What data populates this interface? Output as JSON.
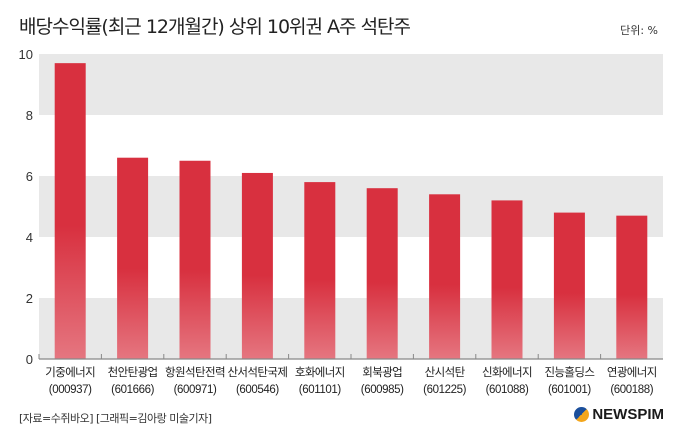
{
  "chart_data": {
    "type": "bar",
    "title": "배당수익률(최근 12개월간) 상위 10위권 A주 석탄주",
    "unit": "단위: %",
    "categories": [
      {
        "name": "기중에너지",
        "code": "(000937)"
      },
      {
        "name": "천안탄광업",
        "code": "(601666)"
      },
      {
        "name": "항원석탄전력",
        "code": "(600971)"
      },
      {
        "name": "산서석탄국제",
        "code": "(600546)"
      },
      {
        "name": "호화에너지",
        "code": "(601101)"
      },
      {
        "name": "회북광업",
        "code": "(600985)"
      },
      {
        "name": "산시석탄",
        "code": "(601225)"
      },
      {
        "name": "신화에너지",
        "code": "(601088)"
      },
      {
        "name": "진능홀딩스",
        "code": "(601001)"
      },
      {
        "name": "연광에너지",
        "code": "(600188)"
      }
    ],
    "values": [
      9.7,
      6.6,
      6.5,
      6.1,
      5.8,
      5.6,
      5.4,
      5.2,
      4.8,
      4.7
    ],
    "ylim": [
      0,
      10
    ],
    "yticks": [
      "0",
      "2",
      "4",
      "6",
      "8",
      "10"
    ],
    "grid": "alternating horizontal bands",
    "colors": {
      "bar_top": "#d8303f",
      "bar_bottom": "#e57680",
      "band": "#e8e8e8",
      "axis": "#888888"
    }
  },
  "footer": {
    "source": "[자료=수쥐바오] [그래픽=김아랑 미술기자]",
    "logo": "NEWSPIM"
  }
}
